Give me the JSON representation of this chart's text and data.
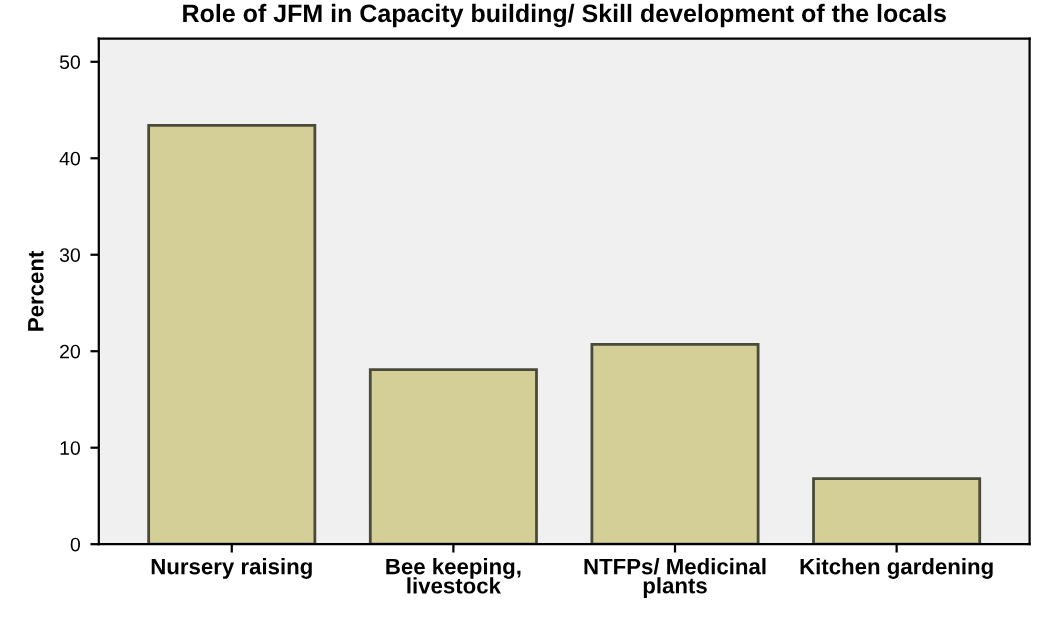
{
  "chart_data": {
    "type": "bar",
    "title": "Role of JFM in Capacity building/ Skill development of the locals",
    "ylabel": "Percent",
    "categories": [
      "Nursery raising",
      "Bee keeping,\nlivestock",
      "NTFPs/ Medicinal\nplants",
      "Kitchen gardening"
    ],
    "values": [
      43.4,
      18.1,
      20.7,
      6.8
    ],
    "color": "#d3cf97",
    "ylim": [
      0,
      52.4
    ],
    "yticks": [
      0,
      10,
      20,
      30,
      40,
      50
    ],
    "grid": false,
    "legend": false
  }
}
